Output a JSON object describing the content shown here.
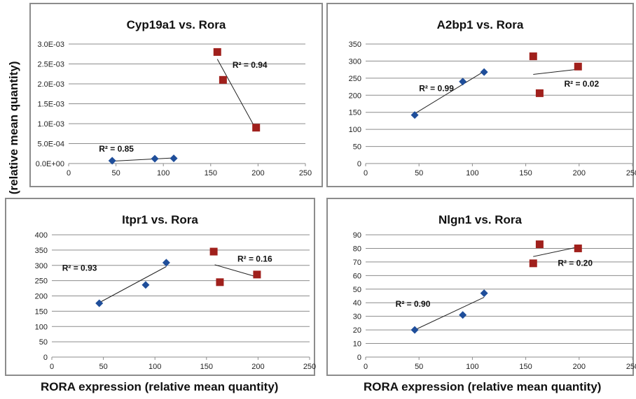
{
  "figure": {
    "shared_ylabel": "Target gene expression  (relative mean quantity)",
    "shared_xlabel_left": "RORA expression  (relative mean quantity)",
    "shared_xlabel_right": "RORA expression  (relative mean quantity)"
  },
  "colors": {
    "series_a": "#1f4e9a",
    "series_b": "#a0201c",
    "gridline": "#8c8c8c",
    "trendline": "#222222"
  },
  "chart_data": [
    {
      "type": "scatter",
      "title": "Cyp19a1 vs. Rora",
      "xlim": [
        0,
        250
      ],
      "ylim": [
        0,
        0.003
      ],
      "x_ticks": [
        "0",
        "50",
        "100",
        "150",
        "200",
        "250"
      ],
      "y_ticks": [
        "0.0E+00",
        "5.0E-04",
        "1.0E-03",
        "1.5E-03",
        "2.0E-03",
        "2.5E-03",
        "3.0E-03"
      ],
      "grid": true,
      "series": [
        {
          "marker": "diamond",
          "color": "#1f4e9a",
          "x": [
            46,
            91,
            111
          ],
          "y": [
            7e-05,
            0.00012,
            0.00013
          ],
          "trend": {
            "x": [
              46,
              111
            ],
            "y": [
              6e-05,
              0.00014
            ]
          },
          "r2_label": "R² = 0.85",
          "r2_at": {
            "x": 32,
            "y": 0.0003
          }
        },
        {
          "marker": "square",
          "color": "#a0201c",
          "x": [
            157,
            163,
            198
          ],
          "y": [
            0.0028,
            0.0021,
            0.0009
          ],
          "trend": {
            "x": [
              157,
              198
            ],
            "y": [
              0.00262,
              0.00085
            ]
          },
          "r2_label": "R² = 0.94",
          "r2_at": {
            "x": 173,
            "y": 0.0024
          }
        }
      ]
    },
    {
      "type": "scatter",
      "title": "A2bp1 vs. Rora",
      "xlim": [
        0,
        250
      ],
      "ylim": [
        0,
        350
      ],
      "x_ticks": [
        "0",
        "50",
        "100",
        "150",
        "200",
        "250"
      ],
      "y_ticks": [
        "0",
        "50",
        "100",
        "150",
        "200",
        "250",
        "300",
        "350"
      ],
      "grid": true,
      "series": [
        {
          "marker": "diamond",
          "color": "#1f4e9a",
          "x": [
            46,
            91,
            111
          ],
          "y": [
            142,
            240,
            268
          ],
          "trend": {
            "x": [
              46,
              111
            ],
            "y": [
              146,
              270
            ]
          },
          "r2_label": "R² = 0.99",
          "r2_at": {
            "x": 50,
            "y": 212
          }
        },
        {
          "marker": "square",
          "color": "#a0201c",
          "x": [
            157,
            163,
            199
          ],
          "y": [
            314,
            206,
            284
          ],
          "trend": {
            "x": [
              157,
              199
            ],
            "y": [
              261,
              276
            ]
          },
          "r2_label": "R² = 0.02",
          "r2_at": {
            "x": 186,
            "y": 225
          }
        }
      ]
    },
    {
      "type": "scatter",
      "title": "Itpr1 vs. Rora",
      "xlim": [
        0,
        250
      ],
      "ylim": [
        0,
        400
      ],
      "x_ticks": [
        "0",
        "50",
        "100",
        "150",
        "200",
        "250"
      ],
      "y_ticks": [
        "0",
        "50",
        "100",
        "150",
        "200",
        "250",
        "300",
        "350",
        "400"
      ],
      "grid": true,
      "series": [
        {
          "marker": "diamond",
          "color": "#1f4e9a",
          "x": [
            46,
            91,
            111
          ],
          "y": [
            176,
            236,
            309
          ],
          "trend": {
            "x": [
              46,
              111
            ],
            "y": [
              178,
              296
            ]
          },
          "r2_label": "R² = 0.93",
          "r2_at": {
            "x": 10,
            "y": 282
          }
        },
        {
          "marker": "square",
          "color": "#a0201c",
          "x": [
            157,
            163,
            199
          ],
          "y": [
            345,
            245,
            270
          ],
          "trend": {
            "x": [
              158,
              199
            ],
            "y": [
              302,
              262
            ]
          },
          "r2_label": "R² = 0.16",
          "r2_at": {
            "x": 180,
            "y": 312
          }
        }
      ]
    },
    {
      "type": "scatter",
      "title": "Nlgn1 vs. Rora",
      "xlim": [
        0,
        250
      ],
      "ylim": [
        0,
        90
      ],
      "x_ticks": [
        "0",
        "50",
        "100",
        "150",
        "200",
        "250"
      ],
      "y_ticks": [
        "0",
        "10",
        "20",
        "30",
        "40",
        "50",
        "60",
        "70",
        "80",
        "90"
      ],
      "grid": true,
      "series": [
        {
          "marker": "diamond",
          "color": "#1f4e9a",
          "x": [
            46,
            91,
            111
          ],
          "y": [
            20,
            31,
            47
          ],
          "trend": {
            "x": [
              46,
              111
            ],
            "y": [
              20,
              44
            ]
          },
          "r2_label": "R² = 0.90",
          "r2_at": {
            "x": 28,
            "y": 37
          }
        },
        {
          "marker": "square",
          "color": "#a0201c",
          "x": [
            157,
            163,
            199
          ],
          "y": [
            69,
            83,
            80
          ],
          "trend": {
            "x": [
              157,
              199
            ],
            "y": [
              74,
              81
            ]
          },
          "r2_label": "R² = 0.20",
          "r2_at": {
            "x": 180,
            "y": 67
          }
        }
      ]
    }
  ]
}
